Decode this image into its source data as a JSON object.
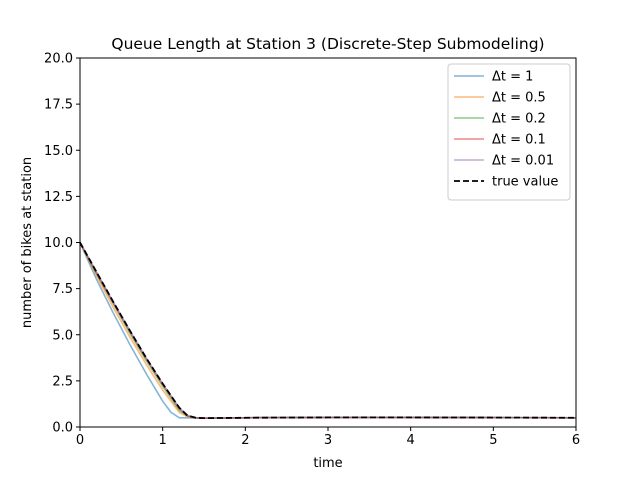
{
  "chart_data": {
    "type": "line",
    "title": "Queue Length at Station 3 (Discrete-Step Submodeling)",
    "xlabel": "time",
    "ylabel": "number of bikes at station",
    "xlim": [
      0,
      6
    ],
    "ylim": [
      0,
      20
    ],
    "xticks": [
      "0",
      "1",
      "2",
      "3",
      "4",
      "5",
      "6"
    ],
    "yticks": [
      "0.0",
      "2.5",
      "5.0",
      "7.5",
      "10.0",
      "12.5",
      "15.0",
      "17.5",
      "20.0"
    ],
    "grid": false,
    "legend_position": "top-right",
    "series": [
      {
        "name": "Δt = 1",
        "color": "#1f77b4",
        "opacity": 0.55,
        "dash": "solid",
        "x": [
          0,
          0.2,
          0.4,
          0.6,
          0.8,
          1.0,
          1.1,
          1.2,
          1.3,
          1.5,
          2,
          3,
          4,
          5,
          6
        ],
        "y": [
          10,
          8.0,
          6.2,
          4.5,
          2.9,
          1.4,
          0.8,
          0.5,
          0.5,
          0.48,
          0.5,
          0.52,
          0.52,
          0.51,
          0.5
        ]
      },
      {
        "name": "Δt = 0.5",
        "color": "#ff7f0e",
        "opacity": 0.55,
        "dash": "solid",
        "x": [
          0,
          0.2,
          0.4,
          0.6,
          0.8,
          1.0,
          1.2,
          1.3,
          1.4,
          1.5,
          2,
          3,
          4,
          5,
          6
        ],
        "y": [
          10,
          8.2,
          6.5,
          4.9,
          3.4,
          2.0,
          0.8,
          0.55,
          0.5,
          0.48,
          0.5,
          0.52,
          0.52,
          0.51,
          0.5
        ]
      },
      {
        "name": "Δt = 0.2",
        "color": "#2ca02c",
        "opacity": 0.55,
        "dash": "solid",
        "x": [
          0,
          0.2,
          0.4,
          0.6,
          0.8,
          1.0,
          1.2,
          1.3,
          1.4,
          1.5,
          2,
          3,
          4,
          5,
          6
        ],
        "y": [
          10,
          8.3,
          6.7,
          5.1,
          3.6,
          2.2,
          0.9,
          0.6,
          0.5,
          0.48,
          0.5,
          0.52,
          0.52,
          0.51,
          0.5
        ]
      },
      {
        "name": "Δt = 0.1",
        "color": "#d62728",
        "opacity": 0.55,
        "dash": "solid",
        "x": [
          0,
          0.2,
          0.4,
          0.6,
          0.8,
          1.0,
          1.2,
          1.3,
          1.4,
          1.5,
          2,
          3,
          4,
          5,
          6
        ],
        "y": [
          10,
          8.35,
          6.75,
          5.2,
          3.7,
          2.3,
          1.0,
          0.6,
          0.5,
          0.48,
          0.5,
          0.52,
          0.52,
          0.51,
          0.5
        ]
      },
      {
        "name": "Δt = 0.01",
        "color": "#9467bd",
        "opacity": 0.55,
        "dash": "solid",
        "x": [
          0,
          0.2,
          0.4,
          0.6,
          0.8,
          1.0,
          1.2,
          1.3,
          1.4,
          1.5,
          2,
          3,
          4,
          5,
          6
        ],
        "y": [
          10,
          8.4,
          6.8,
          5.25,
          3.75,
          2.35,
          1.05,
          0.62,
          0.5,
          0.48,
          0.5,
          0.52,
          0.52,
          0.51,
          0.5
        ]
      },
      {
        "name": "true value",
        "color": "#000000",
        "opacity": 1,
        "dash": "dashed",
        "x": [
          0,
          0.2,
          0.4,
          0.6,
          0.8,
          1.0,
          1.2,
          1.3,
          1.4,
          1.5,
          2,
          3,
          4,
          5,
          6
        ],
        "y": [
          10,
          8.4,
          6.8,
          5.25,
          3.75,
          2.35,
          1.05,
          0.62,
          0.5,
          0.48,
          0.5,
          0.52,
          0.52,
          0.51,
          0.5
        ]
      }
    ]
  }
}
